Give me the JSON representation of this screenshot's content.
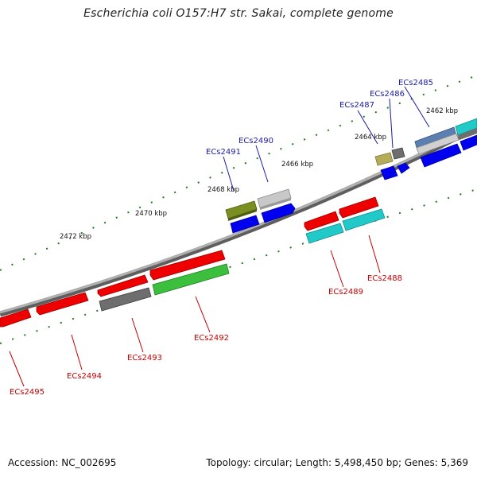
{
  "title": "Escherichia coli O157:H7 str. Sakai, complete genome",
  "footer": {
    "accession": "Accession: NC_002695",
    "summary": "Topology: circular; Length: 5,498,450 bp; Genes: 5,369"
  },
  "kbp_labels": [
    {
      "id": "2462",
      "text": "2462 kbp"
    },
    {
      "id": "2464",
      "text": "2464 kbp"
    },
    {
      "id": "2466",
      "text": "2466 kbp"
    },
    {
      "id": "2468",
      "text": "2468 kbp"
    },
    {
      "id": "2470",
      "text": "2470 kbp"
    },
    {
      "id": "2472",
      "text": "2472 kbp"
    }
  ],
  "gene_labels": [
    {
      "id": "ecs2485",
      "text": "ECs2485",
      "strand": "plus"
    },
    {
      "id": "ecs2486",
      "text": "ECs2486",
      "strand": "plus"
    },
    {
      "id": "ecs2487",
      "text": "ECs2487",
      "strand": "plus"
    },
    {
      "id": "ecs2490",
      "text": "ECs2490",
      "strand": "plus"
    },
    {
      "id": "ecs2491",
      "text": "ECs2491",
      "strand": "plus"
    },
    {
      "id": "ecs2488",
      "text": "ECs2488",
      "strand": "minus"
    },
    {
      "id": "ecs2489",
      "text": "ECs2489",
      "strand": "minus"
    },
    {
      "id": "ecs2492",
      "text": "ECs2492",
      "strand": "minus"
    },
    {
      "id": "ecs2493",
      "text": "ECs2493",
      "strand": "minus"
    },
    {
      "id": "ecs2494",
      "text": "ECs2494",
      "strand": "minus"
    },
    {
      "id": "ecs2495",
      "text": "ECs2495",
      "strand": "minus"
    }
  ],
  "colors": {
    "backbone": "#8c8c8c",
    "tick": "#1f7a1f",
    "label_plus": "#1a1aa6",
    "label_minus": "#c40000",
    "cds_plus": "#0000ee",
    "cds_minus": "#ee0000",
    "feature_cyan": "#22c9c9",
    "feature_green": "#3cbf3c",
    "feature_olive": "#7a8f20",
    "feature_grey": "#6e6e6e",
    "feature_light_grey": "#c8c8c8",
    "feature_khaki": "#b5ac5a"
  }
}
